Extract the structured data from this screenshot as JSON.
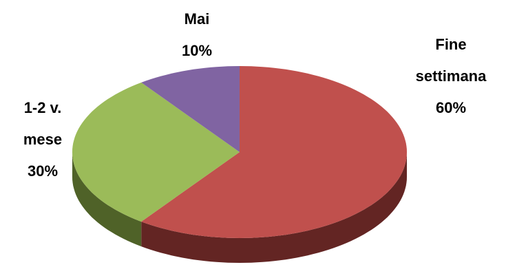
{
  "chart_data": {
    "type": "pie3d",
    "categories": [
      "Fine settimana",
      "1-2 v. mese",
      "Mai"
    ],
    "values": [
      60,
      30,
      10
    ],
    "value_labels": [
      "60%",
      "30%",
      "10%"
    ],
    "colors": [
      "#c0504d",
      "#9bbb59",
      "#8064a2"
    ],
    "side_colors": [
      "#632523",
      "#4f6228",
      "#3f3151"
    ]
  }
}
